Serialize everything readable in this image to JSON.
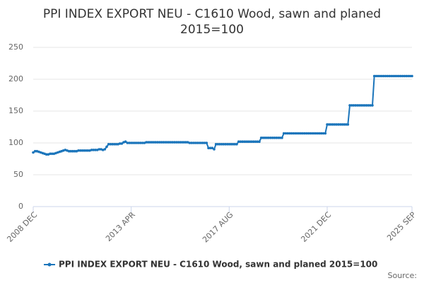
{
  "chart_data": {
    "type": "line",
    "title": [
      "PPI INDEX EXPORT NEU - C1610 Wood, sawn and planed",
      "2015=100"
    ],
    "source": "Source:",
    "categories": [
      "2008 DEC",
      null,
      null,
      null,
      null,
      null,
      null,
      null,
      null,
      null,
      null,
      null,
      null,
      null,
      null,
      null,
      null,
      null,
      null,
      null,
      null,
      null,
      null,
      null,
      null,
      null,
      null,
      null,
      null,
      null,
      null,
      null,
      null,
      null,
      null,
      null,
      null,
      null,
      null,
      null,
      null,
      null,
      null,
      null,
      null,
      null,
      null,
      null,
      null,
      null,
      null,
      null,
      "2013 APR",
      null,
      null,
      null,
      null,
      null,
      null,
      null,
      null,
      null,
      null,
      null,
      null,
      null,
      null,
      null,
      null,
      null,
      null,
      null,
      null,
      null,
      null,
      null,
      null,
      null,
      null,
      null,
      null,
      null,
      null,
      null,
      null,
      null,
      null,
      null,
      null,
      null,
      null,
      null,
      null,
      null,
      null,
      null,
      null,
      null,
      null,
      null,
      null,
      null,
      null,
      null,
      "2017 AUG",
      null,
      null,
      null,
      null,
      null,
      null,
      null,
      null,
      null,
      null,
      null,
      null,
      null,
      null,
      null,
      null,
      null,
      null,
      null,
      null,
      null,
      null,
      null,
      null,
      null,
      null,
      null,
      null,
      null,
      null,
      null,
      null,
      null,
      null,
      null,
      null,
      null,
      null,
      null,
      null,
      null,
      null,
      null,
      null,
      null,
      null,
      null,
      null,
      null,
      null,
      null,
      "2021 DEC",
      null,
      null,
      null,
      null,
      null,
      null,
      null,
      null,
      null,
      null,
      null,
      null,
      null,
      null,
      null,
      null,
      null,
      null,
      null,
      null,
      null,
      null,
      null,
      null,
      null,
      null,
      null,
      null,
      null,
      null,
      null,
      null,
      null,
      null,
      null,
      null,
      null,
      null,
      null,
      null,
      null,
      null,
      null,
      null,
      "2025 SEP"
    ],
    "series": [
      {
        "name": "PPI INDEX EXPORT NEU - C1610 Wood, sawn and planed 2015=100",
        "color": "#1b75bb",
        "values": [
          85,
          87,
          87,
          86,
          85,
          84,
          83,
          82,
          82,
          83,
          83,
          83,
          84,
          85,
          86,
          87,
          88,
          89,
          88,
          87,
          87,
          87,
          87,
          87,
          88,
          88,
          88,
          88,
          88,
          88,
          88,
          89,
          89,
          89,
          89,
          90,
          90,
          89,
          90,
          94,
          98,
          98,
          98,
          98,
          98,
          98,
          99,
          99,
          101,
          102,
          100,
          100,
          100,
          100,
          100,
          100,
          100,
          100,
          100,
          100,
          101,
          101,
          101,
          101,
          101,
          101,
          101,
          101,
          101,
          101,
          101,
          101,
          101,
          101,
          101,
          101,
          101,
          101,
          101,
          101,
          101,
          101,
          101,
          100,
          100,
          100,
          100,
          100,
          100,
          100,
          100,
          100,
          100,
          92,
          92,
          92,
          90,
          98,
          98,
          98,
          98,
          98,
          98,
          98,
          98,
          98,
          98,
          98,
          98,
          102,
          102,
          102,
          102,
          102,
          102,
          102,
          102,
          102,
          102,
          102,
          102,
          108,
          108,
          108,
          108,
          108,
          108,
          108,
          108,
          108,
          108,
          108,
          108,
          115,
          115,
          115,
          115,
          115,
          115,
          115,
          115,
          115,
          115,
          115,
          115,
          115,
          115,
          115,
          115,
          115,
          115,
          115,
          115,
          115,
          115,
          115,
          129,
          129,
          129,
          129,
          129,
          129,
          129,
          129,
          129,
          129,
          129,
          129,
          159,
          159,
          159,
          159,
          159,
          159,
          159,
          159,
          159,
          159,
          159,
          159,
          159,
          205,
          205,
          205,
          205,
          205,
          205,
          205,
          205,
          205,
          205,
          205,
          205,
          205,
          205,
          205,
          205,
          205,
          205,
          205,
          205,
          205
        ]
      }
    ],
    "ylim": [
      0,
      250
    ],
    "yticks": [
      0,
      50,
      100,
      150,
      200,
      250
    ],
    "grid": true
  }
}
